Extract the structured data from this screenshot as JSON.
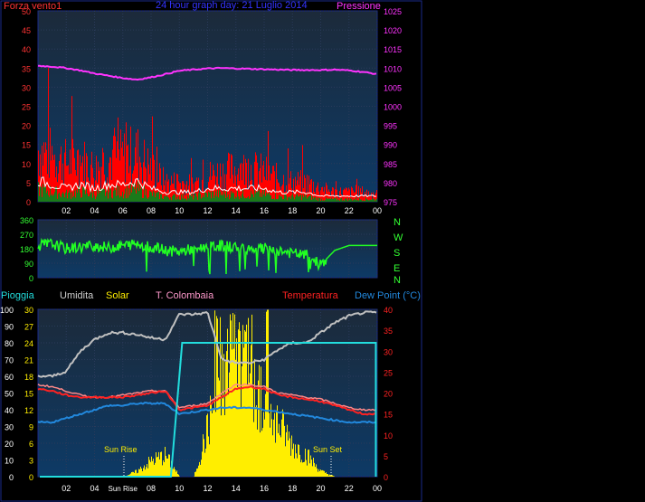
{
  "colors": {
    "background": "#000000",
    "panel_border": "#1a2a8a",
    "plot_top": "#1c2a3a",
    "plot_bottom": "#0d3a66",
    "wind_gust": "#ff0000",
    "wind_avg": "#ffffff",
    "wind_fill": "#1a7a1a",
    "pressure": "#ff33ff",
    "direction": "#22ff22",
    "humidity": "#c0c0c0",
    "solar": "#ffee00",
    "colombaia": "#ff8888",
    "temperature": "#ff2222",
    "dewpoint": "#2288dd",
    "rain": "#22dddd",
    "left_axis": "#ff3333",
    "dir_axis": "#33ff33"
  },
  "header": {
    "left_label": "Forza vento1",
    "title": "24 hour graph day: 21 Luglio 2014",
    "right_label": "Pressione"
  },
  "dir_labels": [
    "N",
    "W",
    "S",
    "E",
    "N"
  ],
  "bottom_legend": {
    "rain": "Pioggia",
    "humidity": "Umidita",
    "solar": "Solar",
    "colombaia": "T. Colombaia",
    "temperature": "Temperatura",
    "dewpoint": "Dew Point (°C)"
  },
  "annotations": {
    "sun_rise": "Sun Rise",
    "sun_set": "Sun Set",
    "sun_rise_tick": "Sun Rise"
  },
  "chart_data": [
    {
      "type": "line",
      "title": "24 hour graph day: 21 Luglio 2014",
      "x_ticks": [
        "02",
        "04",
        "06",
        "08",
        "10",
        "12",
        "14",
        "16",
        "18",
        "20",
        "22",
        "00"
      ],
      "left_axis": {
        "label": "Forza vento1",
        "ticks": [
          0,
          5,
          10,
          15,
          20,
          25,
          30,
          35,
          40,
          45,
          50
        ],
        "ylim": [
          0,
          50
        ]
      },
      "right_axis": {
        "label": "Pressione",
        "ticks": [
          975,
          980,
          985,
          990,
          995,
          1000,
          1005,
          1010,
          1015,
          1020,
          1025
        ],
        "ylim": [
          975,
          1025
        ]
      },
      "x_hours": [
        0,
        1,
        2,
        3,
        4,
        5,
        6,
        7,
        8,
        9,
        10,
        11,
        12,
        13,
        14,
        15,
        16,
        17,
        18,
        19,
        20,
        21,
        22,
        23,
        24
      ],
      "series": [
        {
          "name": "Pressione",
          "axis": "right",
          "values": [
            1010.6,
            1010.4,
            1010.0,
            1009.4,
            1008.6,
            1008.0,
            1007.4,
            1007.0,
            1007.6,
            1008.4,
            1009.3,
            1009.6,
            1009.9,
            1010.0,
            1009.9,
            1009.8,
            1009.7,
            1009.6,
            1009.5,
            1009.5,
            1009.5,
            1009.6,
            1009.4,
            1009.0,
            1008.4
          ]
        },
        {
          "name": "Forza vento1",
          "axis": "left",
          "values": [
            16,
            14,
            12,
            13,
            10,
            13,
            14,
            15,
            10,
            6,
            6,
            5,
            8,
            9,
            10,
            10,
            9,
            7,
            6,
            6,
            4,
            3,
            3,
            3,
            2
          ]
        },
        {
          "axis": "left",
          "values": [
            5,
            4,
            3,
            4,
            3,
            4,
            4,
            5,
            3,
            2,
            2,
            2,
            3,
            3,
            3,
            3,
            3,
            2,
            2,
            2,
            1,
            1,
            1,
            1,
            1
          ]
        }
      ]
    },
    {
      "type": "line",
      "left_axis": {
        "ticks": [
          0,
          90,
          180,
          270,
          360
        ],
        "ylim": [
          0,
          360
        ]
      },
      "x_hours": [
        0,
        1,
        2,
        3,
        4,
        5,
        6,
        7,
        8,
        9,
        10,
        11,
        12,
        13,
        14,
        15,
        16,
        17,
        18,
        19,
        20,
        21,
        22,
        23,
        24
      ],
      "series": [
        {
          "values": [
            200,
            210,
            180,
            190,
            200,
            185,
            200,
            210,
            190,
            170,
            160,
            180,
            190,
            200,
            190,
            185,
            180,
            170,
            150,
            140,
            80,
            170,
            200,
            200,
            200
          ]
        }
      ]
    },
    {
      "type": "line",
      "x_ticks": [
        "02",
        "04",
        "Sun Rise",
        "08",
        "10",
        "12",
        "14",
        "16",
        "18",
        "20",
        "22",
        "00"
      ],
      "left_axis_outer": {
        "label": "Pioggia",
        "ticks": [
          0,
          10,
          20,
          30,
          40,
          50,
          60,
          70,
          80,
          90,
          100
        ],
        "ylim": [
          0,
          100
        ]
      },
      "left_axis_inner": {
        "label": "Solar",
        "ticks": [
          0,
          3,
          6,
          9,
          12,
          15,
          18,
          21,
          24,
          27,
          30
        ],
        "ylim": [
          0,
          30
        ]
      },
      "right_axis": {
        "label": "Temperatura",
        "ticks": [
          0,
          5,
          10,
          15,
          20,
          25,
          30,
          35,
          40
        ],
        "ylim": [
          0,
          40
        ]
      },
      "x_hours": [
        0,
        1,
        2,
        3,
        4,
        5,
        6,
        7,
        8,
        9,
        10,
        11,
        12,
        13,
        14,
        15,
        16,
        17,
        18,
        19,
        20,
        21,
        22,
        23,
        24
      ],
      "series": [
        {
          "name": "Umidita",
          "axis": "left",
          "values": [
            60,
            60,
            63,
            75,
            82,
            86,
            86,
            85,
            83,
            82,
            97,
            97,
            98,
            70,
            68,
            68,
            70,
            76,
            80,
            80,
            86,
            92,
            96,
            98,
            98
          ]
        },
        {
          "name": "Temperatura",
          "axis": "right",
          "values": [
            21,
            20.5,
            19.5,
            19,
            19,
            19,
            19,
            19.5,
            20,
            20.5,
            16,
            16.5,
            17,
            19,
            21,
            21.5,
            21,
            19.5,
            19,
            18.5,
            18,
            17,
            16,
            15,
            15
          ]
        },
        {
          "name": "T. Colombaia",
          "axis": "right",
          "values": [
            22,
            21.5,
            20.5,
            19.5,
            19,
            19,
            19.5,
            20,
            20.5,
            20.5,
            16.5,
            17,
            17.5,
            20,
            22,
            22,
            21.5,
            20,
            19.5,
            19,
            18.5,
            17.5,
            16.5,
            16,
            16
          ]
        },
        {
          "name": "Dew Point (°C)",
          "axis": "right",
          "values": [
            13,
            13,
            14,
            15,
            16,
            17,
            17,
            17.5,
            17.5,
            17.5,
            15,
            15.5,
            16,
            16.5,
            16.5,
            16.5,
            16,
            15.5,
            15,
            14.5,
            14,
            13.5,
            13,
            13,
            13
          ]
        },
        {
          "name": "Solar",
          "axis": "left_inner",
          "values": [
            0,
            0,
            0,
            0,
            0,
            0,
            0,
            1,
            3,
            4,
            0,
            0,
            9,
            20,
            22,
            19,
            14,
            10,
            6,
            4,
            1,
            0,
            0,
            0,
            0
          ]
        },
        {
          "name": "Pioggia",
          "axis": "left",
          "values": [
            0,
            0,
            0,
            0,
            0,
            0,
            0,
            0,
            0,
            0,
            80,
            80,
            80,
            80,
            80,
            80,
            80,
            80,
            80,
            80,
            80,
            80,
            80,
            80,
            80
          ]
        }
      ]
    }
  ]
}
